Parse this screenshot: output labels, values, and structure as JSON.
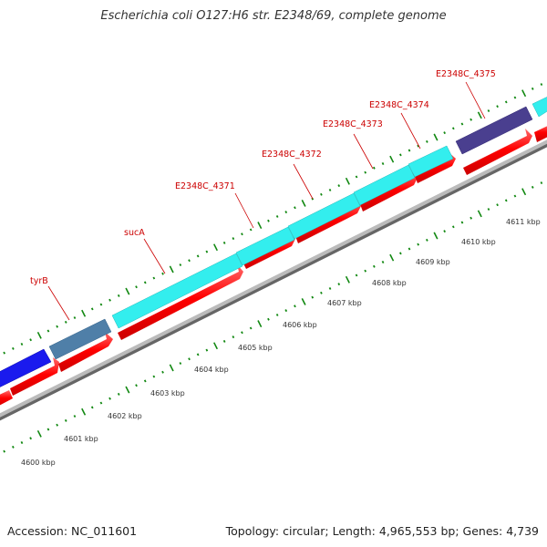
{
  "title": "Escherichia coli O127:H6 str. E2348/69, complete genome",
  "footer": {
    "accession": "Accession: NC_011601",
    "summary": "Topology: circular; Length: 4,965,553 bp; Genes: 4,739"
  },
  "colors": {
    "backbone": "#999999",
    "cds_forward": "#ff0000",
    "gene_label": "#cc0000",
    "tick_green": "#118811",
    "feature_colors": [
      "#1a1aee",
      "#4f7fa8",
      "#33eeee",
      "#4a3f8f"
    ]
  },
  "gene_labels": [
    "tyrB",
    "sucA",
    "E2348C_4371",
    "E2348C_4372",
    "E2348C_4373",
    "E2348C_4374",
    "E2348C_4375"
  ],
  "kbp_labels": [
    "4600 kbp",
    "4601 kbp",
    "4602 kbp",
    "4603 kbp",
    "4604 kbp",
    "4605 kbp",
    "4606 kbp",
    "4607 kbp",
    "4608 kbp",
    "4609 kbp",
    "4610 kbp",
    "4611 kbp"
  ]
}
